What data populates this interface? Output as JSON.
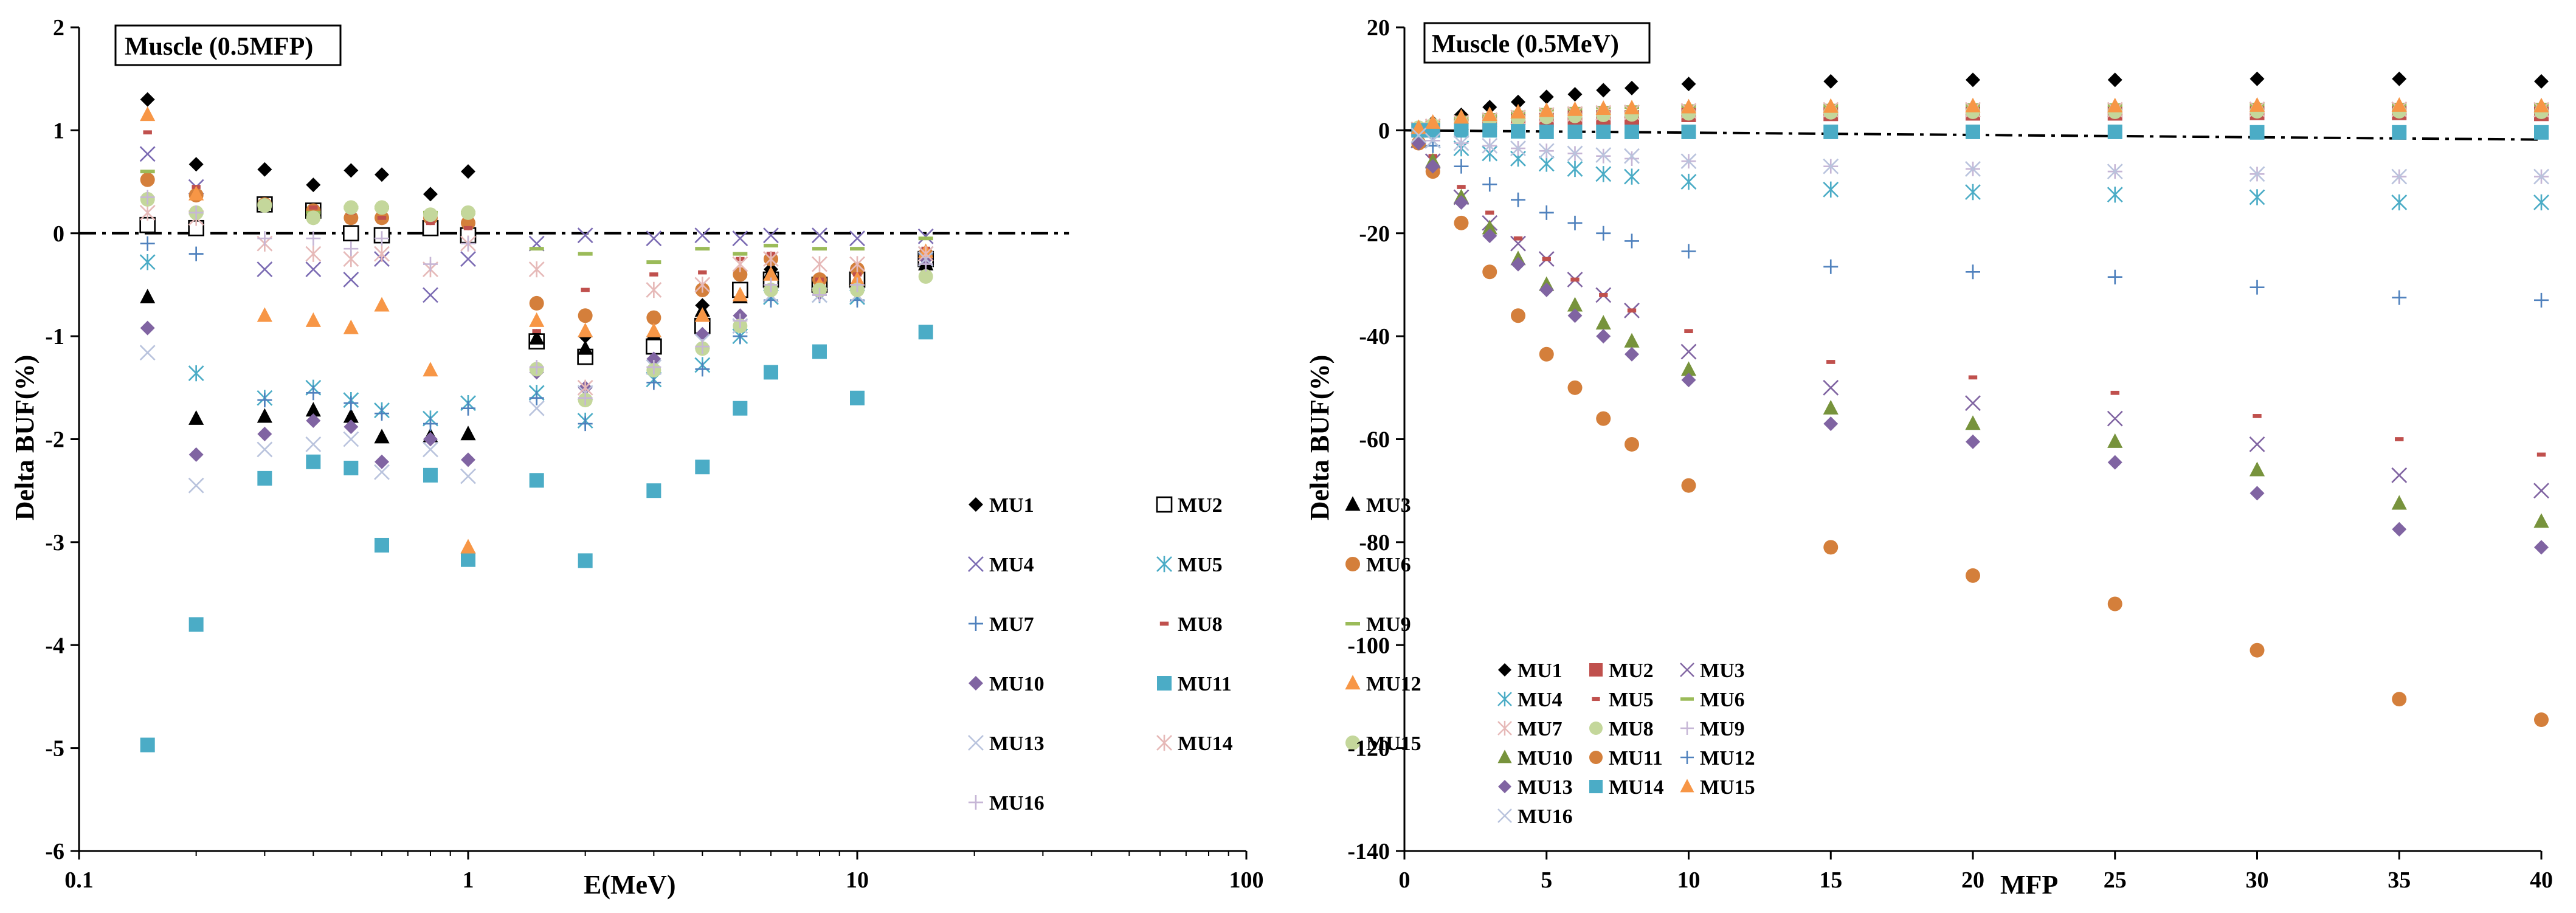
{
  "chart_data": [
    {
      "type": "scatter",
      "title": "Muscle (0.5MFP)",
      "xlabel": "E(MeV)",
      "ylabel": "Delta BUF(%)",
      "xscale": "log",
      "xlim": [
        0.1,
        100
      ],
      "ylim": [
        -6,
        2
      ],
      "xticks": [
        0.1,
        1,
        10,
        100
      ],
      "xtick_labels": [
        "0.1",
        "1",
        "10",
        "100"
      ],
      "yticks": [
        2,
        1,
        0,
        -1,
        -2,
        -3,
        -4,
        -5,
        -6
      ],
      "ytick_labels": [
        "2",
        "1",
        "0",
        "-1",
        "-2",
        "-3",
        "-4",
        "-5",
        "-6"
      ],
      "reference_line": {
        "y": 0,
        "x_range": [
          0.1,
          35
        ],
        "style": "dash-dot"
      },
      "legend_position": "lower-right",
      "x": [
        0.15,
        0.2,
        0.3,
        0.4,
        0.5,
        0.6,
        0.8,
        1,
        1.5,
        2,
        3,
        4,
        5,
        6,
        8,
        10,
        15
      ],
      "series": [
        {
          "name": "MU1",
          "values": [
            1.3,
            0.67,
            0.62,
            0.47,
            0.61,
            0.57,
            0.38,
            0.6,
            -1.0,
            -1.0,
            -1.0,
            -0.7,
            -0.6,
            -0.35,
            -0.5,
            -0.5,
            -0.3
          ]
        },
        {
          "name": "MU2",
          "values": [
            0.08,
            0.05,
            0.28,
            0.22,
            0.0,
            -0.02,
            0.05,
            -0.02,
            -1.05,
            -1.2,
            -1.1,
            -0.9,
            -0.55,
            -0.45,
            -0.5,
            -0.45,
            -0.25
          ]
        },
        {
          "name": "MU3",
          "values": [
            -0.62,
            -1.8,
            -1.78,
            -1.72,
            -1.78,
            -1.98,
            -1.97,
            -1.95,
            -1.02,
            -1.12,
            -0.98,
            -0.75,
            -0.62,
            -0.38,
            -0.5,
            -0.48,
            -0.3
          ]
        },
        {
          "name": "MU4",
          "values": [
            0.77,
            0.45,
            -0.35,
            -0.35,
            -0.45,
            -0.25,
            -0.6,
            -0.25,
            -0.1,
            -0.02,
            -0.05,
            -0.02,
            -0.05,
            -0.02,
            -0.02,
            -0.05,
            -0.03
          ]
        },
        {
          "name": "MU5",
          "values": [
            -0.28,
            -1.36,
            -1.6,
            -1.5,
            -1.62,
            -1.72,
            -1.8,
            -1.65,
            -1.55,
            -1.82,
            -1.42,
            -1.28,
            -1.0,
            -0.62,
            -0.6,
            -0.62,
            -0.2
          ]
        },
        {
          "name": "MU6",
          "values": [
            0.52,
            0.37,
            0.28,
            0.22,
            0.15,
            0.15,
            0.15,
            0.1,
            -0.68,
            -0.8,
            -0.82,
            -0.55,
            -0.4,
            -0.25,
            -0.45,
            -0.35,
            -0.2
          ]
        },
        {
          "name": "MU7",
          "values": [
            -0.1,
            -0.2,
            -1.62,
            -1.55,
            -1.65,
            -1.75,
            -1.85,
            -1.7,
            -1.6,
            -1.85,
            -1.45,
            -1.32,
            -1.0,
            -0.65,
            -0.6,
            -0.65,
            -0.2
          ]
        },
        {
          "name": "MU8",
          "values": [
            0.98,
            0.45,
            0.3,
            0.25,
            0.2,
            0.15,
            0.1,
            0.05,
            -0.95,
            -0.55,
            -0.4,
            -0.38,
            -0.25,
            -0.2,
            -0.45,
            -0.4,
            -0.15
          ]
        },
        {
          "name": "MU9",
          "values": [
            0.6,
            0.2,
            0.28,
            0.2,
            0.25,
            0.25,
            0.2,
            0.2,
            -0.15,
            -0.2,
            -0.28,
            -0.15,
            -0.2,
            -0.12,
            -0.15,
            -0.15,
            -0.05
          ]
        },
        {
          "name": "MU10",
          "values": [
            -0.92,
            -2.15,
            -1.95,
            -1.82,
            -1.88,
            -2.22,
            -2.0,
            -2.2,
            -1.35,
            -1.5,
            -1.22,
            -0.98,
            -0.8,
            -0.55,
            -0.58,
            -0.55,
            -0.25
          ]
        },
        {
          "name": "MU11",
          "values": [
            -4.97,
            -3.8,
            -2.38,
            -2.22,
            -2.28,
            -3.03,
            -2.35,
            -3.17,
            -2.4,
            -3.18,
            -2.5,
            -2.27,
            -1.7,
            -1.35,
            -1.15,
            -1.6,
            -0.96
          ]
        },
        {
          "name": "MU12",
          "values": [
            1.15,
            0.38,
            -0.8,
            -0.85,
            -0.92,
            -0.7,
            -1.33,
            -3.05,
            -0.85,
            -0.95,
            -0.95,
            -0.8,
            -0.6,
            -0.4,
            -0.5,
            -0.45,
            -0.18
          ]
        },
        {
          "name": "MU13",
          "values": [
            -1.16,
            -2.45,
            -2.1,
            -2.05,
            -2.0,
            -2.32,
            -2.1,
            -2.36,
            -1.7,
            -1.55,
            -1.3,
            -1.05,
            -0.9,
            -0.6,
            -0.6,
            -0.6,
            -0.25
          ]
        },
        {
          "name": "MU14",
          "values": [
            0.2,
            0.15,
            -0.1,
            -0.2,
            -0.25,
            -0.2,
            -0.35,
            -0.1,
            -0.35,
            -1.5,
            -0.55,
            -0.5,
            -0.3,
            -0.25,
            -0.3,
            -0.3,
            -0.2
          ]
        },
        {
          "name": "MU15",
          "values": [
            0.33,
            0.2,
            0.27,
            0.15,
            0.25,
            0.25,
            0.18,
            0.2,
            -1.32,
            -1.62,
            -1.33,
            -1.12,
            -0.9,
            -0.55,
            -0.55,
            -0.55,
            -0.42
          ]
        },
        {
          "name": "MU16",
          "values": [
            0.35,
            0.2,
            -0.05,
            -0.05,
            -0.15,
            -0.05,
            -0.3,
            -0.1,
            -1.3,
            -1.6,
            -1.3,
            -1.1,
            -0.85,
            -0.5,
            -0.6,
            -0.5,
            -0.3
          ]
        }
      ]
    },
    {
      "type": "scatter",
      "title": "Muscle (0.5MeV)",
      "xlabel": "MFP",
      "ylabel": "Delta BUF(%)",
      "xscale": "linear",
      "xlim": [
        0,
        40
      ],
      "ylim": [
        -140,
        20
      ],
      "xticks": [
        0,
        5,
        10,
        15,
        20,
        25,
        30,
        35,
        40
      ],
      "xtick_labels": [
        "0",
        "5",
        "10",
        "15",
        "20",
        "25",
        "30",
        "35",
        "40"
      ],
      "yticks": [
        20,
        0,
        -20,
        -40,
        -60,
        -80,
        -100,
        -120,
        -140
      ],
      "ytick_labels": [
        "20",
        "0",
        "-20",
        "-40",
        "-60",
        "-80",
        "-100",
        "-120",
        "-140"
      ],
      "reference_line": {
        "y_start": 0,
        "y_end": -1.8,
        "x_range": [
          0,
          40
        ],
        "style": "dash-dot"
      },
      "legend_position": "lower-left",
      "x": [
        0.5,
        1,
        2,
        3,
        4,
        5,
        6,
        7,
        8,
        10,
        15,
        20,
        25,
        30,
        35,
        40
      ],
      "series": [
        {
          "name": "MU1",
          "values": [
            0.5,
            1.5,
            3,
            4.5,
            5.5,
            6.5,
            7,
            7.8,
            8.2,
            9,
            9.5,
            9.8,
            9.8,
            10,
            10,
            9.5
          ]
        },
        {
          "name": "MU2",
          "values": [
            0,
            0.5,
            1,
            1.5,
            2,
            2,
            2.5,
            2.5,
            2.5,
            3,
            3.2,
            3.3,
            3.3,
            3.4,
            3.4,
            3.2
          ]
        },
        {
          "name": "MU3",
          "values": [
            -2,
            -6,
            -13,
            -18,
            -22,
            -25,
            -29,
            -32,
            -35,
            -43,
            -50,
            -53,
            -56,
            -61,
            -67,
            -70
          ]
        },
        {
          "name": "MU4",
          "values": [
            -1,
            -2,
            -3.5,
            -4.5,
            -5.5,
            -6.5,
            -7.5,
            -8.5,
            -9,
            -10,
            -11.5,
            -12,
            -12.5,
            -13,
            -14,
            -14
          ]
        },
        {
          "name": "MU5",
          "values": [
            -1.5,
            -5,
            -11,
            -16,
            -21,
            -25,
            -29,
            -32,
            -35,
            -39,
            -45,
            -48,
            -51,
            -55.5,
            -60,
            -63
          ]
        },
        {
          "name": "MU6",
          "values": [
            1,
            1.5,
            2.5,
            3,
            3.5,
            4,
            4.2,
            4.4,
            4.5,
            4.7,
            4.8,
            4.9,
            4.9,
            5,
            5,
            5
          ]
        },
        {
          "name": "MU7",
          "values": [
            0.2,
            0.8,
            1.5,
            2,
            2.5,
            3,
            3.2,
            3.4,
            3.5,
            3.8,
            4,
            4,
            4,
            4.1,
            4.1,
            4
          ]
        },
        {
          "name": "MU8",
          "values": [
            0.5,
            1,
            1.5,
            2,
            2.3,
            2.6,
            2.8,
            3,
            3.1,
            3.3,
            3.5,
            3.6,
            3.6,
            3.7,
            3.7,
            3.6
          ]
        },
        {
          "name": "MU9",
          "values": [
            -1,
            -2,
            -2.5,
            -3,
            -3.5,
            -4,
            -4.5,
            -5,
            -5.5,
            -6,
            -7,
            -7.5,
            -8,
            -8.5,
            -9,
            -9
          ]
        },
        {
          "name": "MU10",
          "values": [
            -2,
            -6,
            -13,
            -19,
            -25,
            -30,
            -34,
            -37.5,
            -41,
            -46.5,
            -54,
            -57,
            -60.5,
            -66,
            -72.5,
            -76
          ]
        },
        {
          "name": "MU11",
          "values": [
            -2.5,
            -8,
            -18,
            -27.5,
            -36,
            -43.5,
            -50,
            -56,
            -61,
            -69,
            -81,
            -86.5,
            -92,
            -101,
            -110.5,
            -114.5
          ]
        },
        {
          "name": "MU12",
          "values": [
            -1,
            -3,
            -7,
            -10.5,
            -13.5,
            -16,
            -18,
            -20,
            -21.5,
            -23.5,
            -26.5,
            -27.5,
            -28.5,
            -30.5,
            -32.5,
            -33
          ]
        },
        {
          "name": "MU13",
          "values": [
            -2.5,
            -7,
            -14,
            -20.5,
            -26,
            -31,
            -36,
            -40,
            -43.5,
            -48.5,
            -57,
            -60.5,
            -64.5,
            -70.5,
            -77.5,
            -81
          ]
        },
        {
          "name": "MU14",
          "values": [
            0,
            0,
            0,
            0,
            -0.2,
            -0.3,
            -0.3,
            -0.3,
            -0.3,
            -0.3,
            -0.3,
            -0.3,
            -0.3,
            -0.4,
            -0.4,
            -0.4
          ]
        },
        {
          "name": "MU15",
          "values": [
            0.5,
            1.5,
            2.5,
            3,
            3.5,
            3.8,
            4,
            4.2,
            4.3,
            4.5,
            4.6,
            4.7,
            4.7,
            4.8,
            4.8,
            4.7
          ]
        },
        {
          "name": "MU16",
          "values": [
            -1,
            -2,
            -2.5,
            -3,
            -3.5,
            -4,
            -4.5,
            -4.8,
            -5,
            -6,
            -7,
            -7.5,
            -8,
            -8.5,
            -9,
            -9
          ]
        }
      ]
    }
  ],
  "styles": {
    "MU1": {
      "marker": "diamond",
      "color": "#000000",
      "filled": true
    },
    "MU2": {
      "marker": "square",
      "color": "#000000",
      "filled": false
    },
    "MU3": {
      "marker": "triangle",
      "color": "#000000",
      "filled": true
    },
    "MU4": {
      "marker": "x",
      "color": "#7b6bb3",
      "filled": false
    },
    "MU5": {
      "marker": "asterisk",
      "color": "#4bacc6",
      "filled": false
    },
    "MU6": {
      "marker": "circle",
      "color": "#d47f3b",
      "filled": true
    },
    "MU7": {
      "marker": "plus",
      "color": "#4f81bd",
      "filled": false
    },
    "MU8": {
      "marker": "dash",
      "color": "#c0504d",
      "filled": true
    },
    "MU9": {
      "marker": "longdash",
      "color": "#9bbb59",
      "filled": true
    },
    "MU10": {
      "marker": "diamond",
      "color": "#8064a2",
      "filled": true
    },
    "MU11": {
      "marker": "square",
      "color": "#4bacc6",
      "filled": true
    },
    "MU12": {
      "marker": "triangle",
      "color": "#f79646",
      "filled": true
    },
    "MU13": {
      "marker": "x",
      "color": "#b9c3dd",
      "filled": false
    },
    "MU14": {
      "marker": "asterisk",
      "color": "#e6b9b8",
      "filled": false
    },
    "MU15": {
      "marker": "circle",
      "color": "#c4d79b",
      "filled": true
    },
    "MU16": {
      "marker": "plus",
      "color": "#c6b6d6",
      "filled": false
    }
  },
  "styles_right": {
    "MU1": {
      "marker": "diamond",
      "color": "#000000",
      "filled": true
    },
    "MU2": {
      "marker": "square",
      "color": "#c0504d",
      "filled": true
    },
    "MU3": {
      "marker": "x",
      "color": "#8064a2",
      "filled": false
    },
    "MU4": {
      "marker": "asterisk",
      "color": "#4bacc6",
      "filled": false
    },
    "MU5": {
      "marker": "dash",
      "color": "#c0504d",
      "filled": true
    },
    "MU6": {
      "marker": "longdash",
      "color": "#9bbb59",
      "filled": true
    },
    "MU7": {
      "marker": "asterisk",
      "color": "#e6b9b8",
      "filled": false
    },
    "MU8": {
      "marker": "circle",
      "color": "#c4d79b",
      "filled": true
    },
    "MU9": {
      "marker": "plus",
      "color": "#c6b6d6",
      "filled": false
    },
    "MU10": {
      "marker": "triangle",
      "color": "#77933c",
      "filled": true
    },
    "MU11": {
      "marker": "circle",
      "color": "#d47f3b",
      "filled": true
    },
    "MU12": {
      "marker": "plus",
      "color": "#4f81bd",
      "filled": false
    },
    "MU13": {
      "marker": "diamond",
      "color": "#8064a2",
      "filled": true
    },
    "MU14": {
      "marker": "square",
      "color": "#4bacc6",
      "filled": true
    },
    "MU15": {
      "marker": "triangle",
      "color": "#f79646",
      "filled": true
    },
    "MU16": {
      "marker": "x",
      "color": "#b9c3dd",
      "filled": false
    }
  }
}
